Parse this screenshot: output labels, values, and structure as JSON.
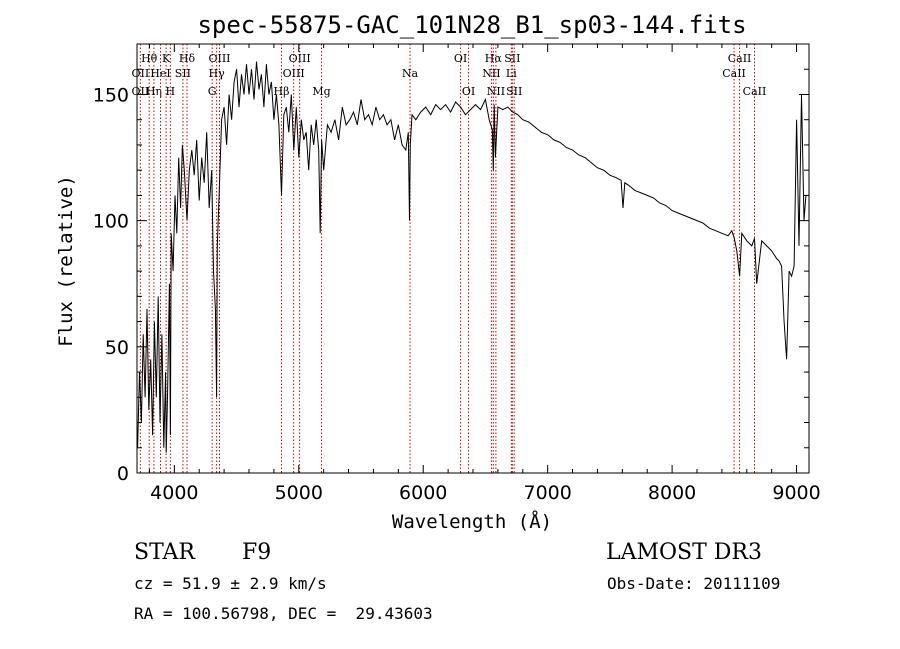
{
  "chart_data": {
    "type": "line",
    "title": "spec-55875-GAC_101N28_B1_sp03-144.fits",
    "xlabel": "Wavelength (Å)",
    "ylabel": "Flux (relative)",
    "xlim": [
      3700,
      9100
    ],
    "ylim": [
      0,
      170
    ],
    "xticks": [
      4000,
      5000,
      6000,
      7000,
      8000,
      9000
    ],
    "yticks": [
      0,
      50,
      100,
      150
    ],
    "grid": false,
    "line_color": "#000000",
    "marker_color": "#cc0000",
    "spectrum": {
      "x": [
        3705,
        3720,
        3735,
        3750,
        3765,
        3780,
        3795,
        3810,
        3825,
        3840,
        3855,
        3870,
        3885,
        3900,
        3915,
        3930,
        3935,
        3945,
        3960,
        3968,
        3975,
        3990,
        4005,
        4020,
        4035,
        4050,
        4065,
        4080,
        4102,
        4120,
        4140,
        4160,
        4180,
        4200,
        4220,
        4240,
        4260,
        4280,
        4300,
        4315,
        4330,
        4340,
        4345,
        4360,
        4380,
        4400,
        4420,
        4440,
        4460,
        4480,
        4500,
        4520,
        4540,
        4560,
        4580,
        4600,
        4620,
        4640,
        4660,
        4680,
        4700,
        4720,
        4740,
        4760,
        4780,
        4800,
        4820,
        4840,
        4861,
        4880,
        4900,
        4920,
        4940,
        4960,
        4980,
        5000,
        5020,
        5040,
        5060,
        5080,
        5100,
        5120,
        5140,
        5160,
        5172,
        5183,
        5200,
        5230,
        5260,
        5290,
        5320,
        5350,
        5380,
        5410,
        5440,
        5470,
        5500,
        5530,
        5560,
        5590,
        5620,
        5650,
        5680,
        5710,
        5740,
        5770,
        5800,
        5830,
        5860,
        5880,
        5890,
        5896,
        5910,
        5940,
        5980,
        6020,
        6060,
        6100,
        6140,
        6180,
        6220,
        6260,
        6300,
        6340,
        6380,
        6420,
        6460,
        6500,
        6530,
        6555,
        6563,
        6570,
        6580,
        6600,
        6640,
        6680,
        6720,
        6760,
        6800,
        6850,
        6900,
        6950,
        7000,
        7050,
        7100,
        7150,
        7200,
        7250,
        7300,
        7350,
        7400,
        7450,
        7500,
        7550,
        7590,
        7605,
        7620,
        7650,
        7700,
        7750,
        7800,
        7850,
        7900,
        7950,
        8000,
        8050,
        8100,
        8150,
        8200,
        8250,
        8300,
        8350,
        8400,
        8450,
        8480,
        8500,
        8520,
        8542,
        8560,
        8600,
        8640,
        8662,
        8680,
        8720,
        8760,
        8800,
        8840,
        8860,
        8880,
        8900,
        8920,
        8940,
        8960,
        8980,
        9000,
        9020,
        9040,
        9060,
        9075
      ],
      "y": [
        10,
        40,
        20,
        55,
        30,
        65,
        25,
        45,
        15,
        60,
        30,
        70,
        20,
        55,
        10,
        40,
        8,
        30,
        75,
        15,
        95,
        80,
        110,
        95,
        125,
        105,
        130,
        120,
        100,
        120,
        128,
        118,
        132,
        108,
        125,
        115,
        135,
        105,
        120,
        80,
        65,
        30,
        90,
        110,
        140,
        145,
        130,
        150,
        140,
        155,
        160,
        145,
        158,
        150,
        162,
        150,
        160,
        148,
        163,
        152,
        158,
        145,
        162,
        150,
        155,
        140,
        150,
        138,
        110,
        142,
        145,
        135,
        150,
        128,
        145,
        125,
        140,
        132,
        135,
        120,
        138,
        130,
        140,
        128,
        95,
        132,
        120,
        138,
        135,
        140,
        132,
        145,
        138,
        140,
        143,
        138,
        148,
        140,
        142,
        138,
        145,
        140,
        142,
        138,
        140,
        132,
        138,
        130,
        128,
        135,
        100,
        130,
        142,
        140,
        143,
        145,
        142,
        146,
        144,
        146,
        143,
        147,
        145,
        142,
        144,
        146,
        144,
        148,
        140,
        136,
        120,
        146,
        125,
        145,
        144,
        145,
        143,
        142,
        140,
        139,
        137,
        135,
        134,
        132,
        131,
        129,
        128,
        126,
        125,
        123,
        121,
        120,
        118,
        117,
        116,
        105,
        115,
        114,
        112,
        111,
        110,
        109,
        107,
        106,
        104,
        103,
        102,
        101,
        100,
        99,
        97,
        96,
        95,
        94,
        96,
        93,
        88,
        78,
        95,
        92,
        90,
        93,
        75,
        92,
        90,
        88,
        85,
        84,
        82,
        60,
        45,
        80,
        78,
        82,
        140,
        90,
        150,
        100,
        110
      ]
    },
    "spectral_lines": [
      {
        "label": "Hθ",
        "x": 3798,
        "row": 1
      },
      {
        "label": "OII",
        "x": 3727,
        "row": 2
      },
      {
        "label": "OII",
        "x": 3727,
        "row": 3
      },
      {
        "label": "Hη",
        "x": 3836,
        "row": 3
      },
      {
        "label": "K",
        "x": 3934,
        "row": 1
      },
      {
        "label": "HeI",
        "x": 3889,
        "row": 2
      },
      {
        "label": "H",
        "x": 3968,
        "row": 3
      },
      {
        "label": "Hδ",
        "x": 4102,
        "row": 1
      },
      {
        "label": "SII",
        "x": 4069,
        "row": 2
      },
      {
        "label": "OIII",
        "x": 4363,
        "row": 1
      },
      {
        "label": "Hγ",
        "x": 4340,
        "row": 2
      },
      {
        "label": "G",
        "x": 4304,
        "row": 3
      },
      {
        "label": "OIII",
        "x": 5007,
        "row": 1
      },
      {
        "label": "OIII",
        "x": 4959,
        "row": 2
      },
      {
        "label": "Hβ",
        "x": 4861,
        "row": 3
      },
      {
        "label": "Mg",
        "x": 5183,
        "row": 3
      },
      {
        "label": "Na",
        "x": 5894,
        "row": 2
      },
      {
        "label": "OI",
        "x": 6300,
        "row": 1
      },
      {
        "label": "OI",
        "x": 6364,
        "row": 3
      },
      {
        "label": "Hα",
        "x": 6563,
        "row": 1
      },
      {
        "label": "SII",
        "x": 6716,
        "row": 1
      },
      {
        "label": "NII",
        "x": 6548,
        "row": 2
      },
      {
        "label": "Li",
        "x": 6708,
        "row": 2
      },
      {
        "label": "NII",
        "x": 6584,
        "row": 3
      },
      {
        "label": "SII",
        "x": 6731,
        "row": 3
      },
      {
        "label": "CaII",
        "x": 8542,
        "row": 1
      },
      {
        "label": "CaII",
        "x": 8498,
        "row": 2
      },
      {
        "label": "CaII",
        "x": 8662,
        "row": 3
      }
    ]
  },
  "info": {
    "class": "STAR",
    "subclass": "F9",
    "survey": "LAMOST DR3",
    "cz": "cz = 51.9 ± 2.9 km/s",
    "obs_date": "Obs-Date: 20111109",
    "coords": "RA = 100.56798, DEC =  29.43603"
  }
}
